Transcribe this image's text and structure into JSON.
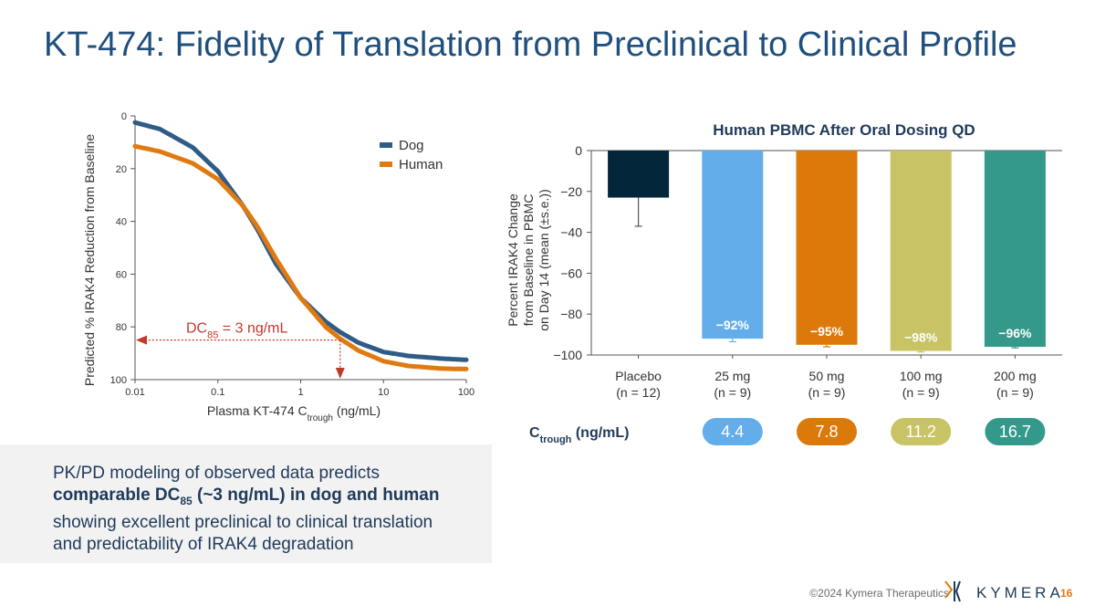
{
  "title": "KT-474: Fidelity of Translation from Preclinical to Clinical Profile",
  "chart_data": [
    {
      "type": "line",
      "title": "",
      "xlabel_main": "Plasma KT-474 C",
      "xlabel_sub": "trough",
      "xlabel_tail": " (ng/mL)",
      "ylabel": "Predicted % IRAK4 Reduction from Baseline",
      "xscale": "log",
      "xlim": [
        0.01,
        100
      ],
      "ylim": [
        0,
        100
      ],
      "y_inverted": true,
      "x_ticks": [
        "0.01",
        "0.1",
        "1",
        "10",
        "100"
      ],
      "x_tick_values": [
        0.01,
        0.1,
        1,
        10,
        100
      ],
      "y_ticks": [
        "0",
        "20",
        "40",
        "60",
        "80",
        "100"
      ],
      "y_tick_values": [
        0,
        20,
        40,
        60,
        80,
        100
      ],
      "legend": [
        "Dog",
        "Human"
      ],
      "series": [
        {
          "name": "Dog",
          "color": "#2f5c86",
          "x": [
            0.01,
            0.02,
            0.05,
            0.1,
            0.2,
            0.3,
            0.5,
            1,
            2,
            3,
            5,
            10,
            20,
            50,
            100
          ],
          "y": [
            2.5,
            5,
            12,
            21,
            34,
            43,
            56,
            69,
            78,
            82,
            86,
            89.5,
            91,
            92,
            92.5
          ]
        },
        {
          "name": "Human",
          "color": "#e07a10",
          "x": [
            0.01,
            0.02,
            0.05,
            0.1,
            0.2,
            0.3,
            0.5,
            1,
            2,
            3,
            5,
            10,
            20,
            50,
            100
          ],
          "y": [
            11.5,
            13.5,
            18,
            24,
            34,
            42,
            54,
            69,
            80,
            84.5,
            89,
            93,
            94.8,
            95.8,
            96
          ]
        }
      ],
      "annotation": {
        "text_main": "DC",
        "text_sub": "85",
        "text_tail": " = 3 ng/mL",
        "x": 3,
        "y": 85,
        "color": "#c0392b"
      }
    },
    {
      "type": "bar",
      "title": "Human PBMC After Oral Dosing QD",
      "ylabel_lines": [
        "Percent IRAK4 Change",
        "from Baseline in PBMC",
        "on Day 14 (mean (±s.e.))"
      ],
      "ylim": [
        -100,
        0
      ],
      "y_ticks": [
        "0",
        "−20",
        "−40",
        "−60",
        "−80",
        "−100"
      ],
      "y_tick_values": [
        0,
        -20,
        -40,
        -60,
        -80,
        -100
      ],
      "categories": [
        "Placebo",
        "25 mg",
        "50 mg",
        "100 mg",
        "200 mg"
      ],
      "n_labels": [
        "(n = 12)",
        "(n = 9)",
        "(n = 9)",
        "(n = 9)",
        "(n = 9)"
      ],
      "values": [
        -23,
        -92,
        -95,
        -98,
        -96
      ],
      "errors": [
        14,
        1.5,
        1,
        0.5,
        0.5
      ],
      "colors": [
        "#03263a",
        "#63aeea",
        "#db7a0b",
        "#c8c365",
        "#34998a"
      ],
      "data_labels": [
        "",
        "−92%",
        "−95%",
        "−98%",
        "−96%"
      ],
      "ctrough_label_main": "C",
      "ctrough_label_sub": "trough",
      "ctrough_label_tail": " (ng/mL)",
      "ctrough_values": [
        "",
        "4.4",
        "7.8",
        "11.2",
        "16.7"
      ]
    }
  ],
  "callout": {
    "line1": "PK/PD modeling of observed data predicts",
    "bold_pre": "comparable DC",
    "bold_sub": "85",
    "bold_post": " (~3 ng/mL) in dog and human",
    "line3": "showing excellent preclinical to clinical translation",
    "line4": "and predictability of IRAK4 degradation"
  },
  "footer": {
    "copyright": "©2024 Kymera Therapeutics",
    "logo": "KYMERA",
    "page": "16"
  }
}
